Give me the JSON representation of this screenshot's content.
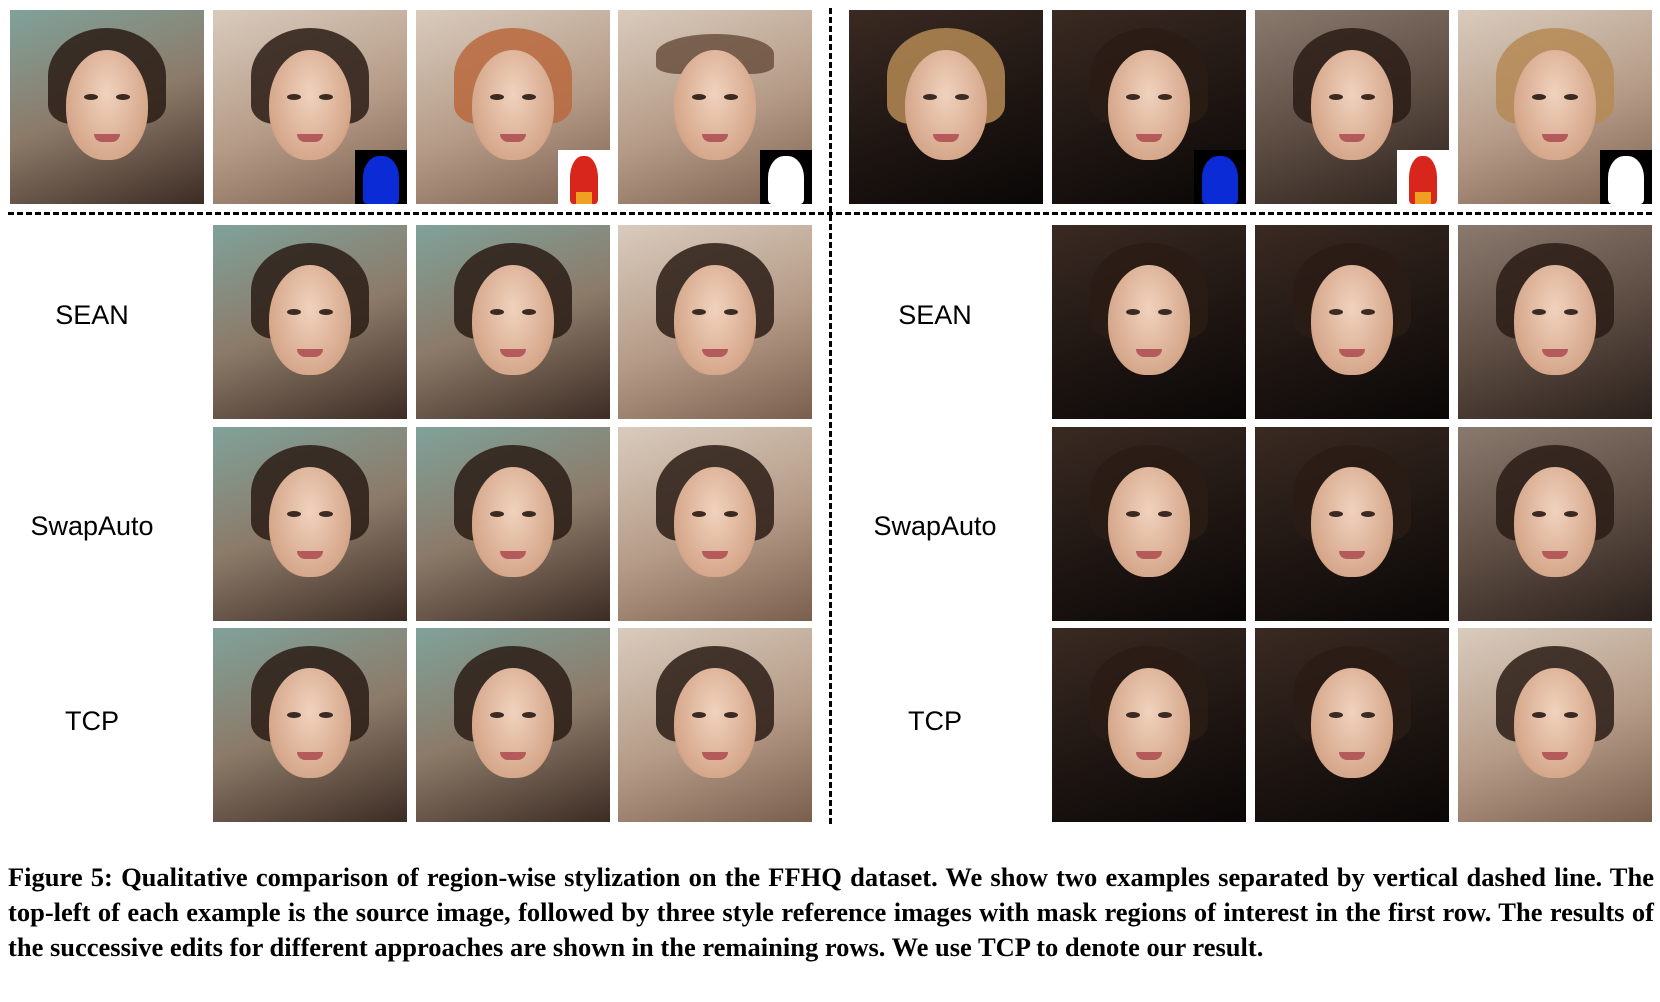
{
  "figure": {
    "row_labels": {
      "sean": "SEAN",
      "swapauto": "SwapAuto",
      "tcp": "TCP"
    },
    "caption_label": "Figure 5:",
    "caption_text": "Qualitative comparison of region-wise stylization on the FFHQ dataset. We show two examples separated by vertical dashed line. The top-left of each example is the source image, followed by three style reference images with mask regions of interest in the first row. The results of the successive edits for different approaches are shown in the remaining rows. We use TCP to denote our result."
  }
}
